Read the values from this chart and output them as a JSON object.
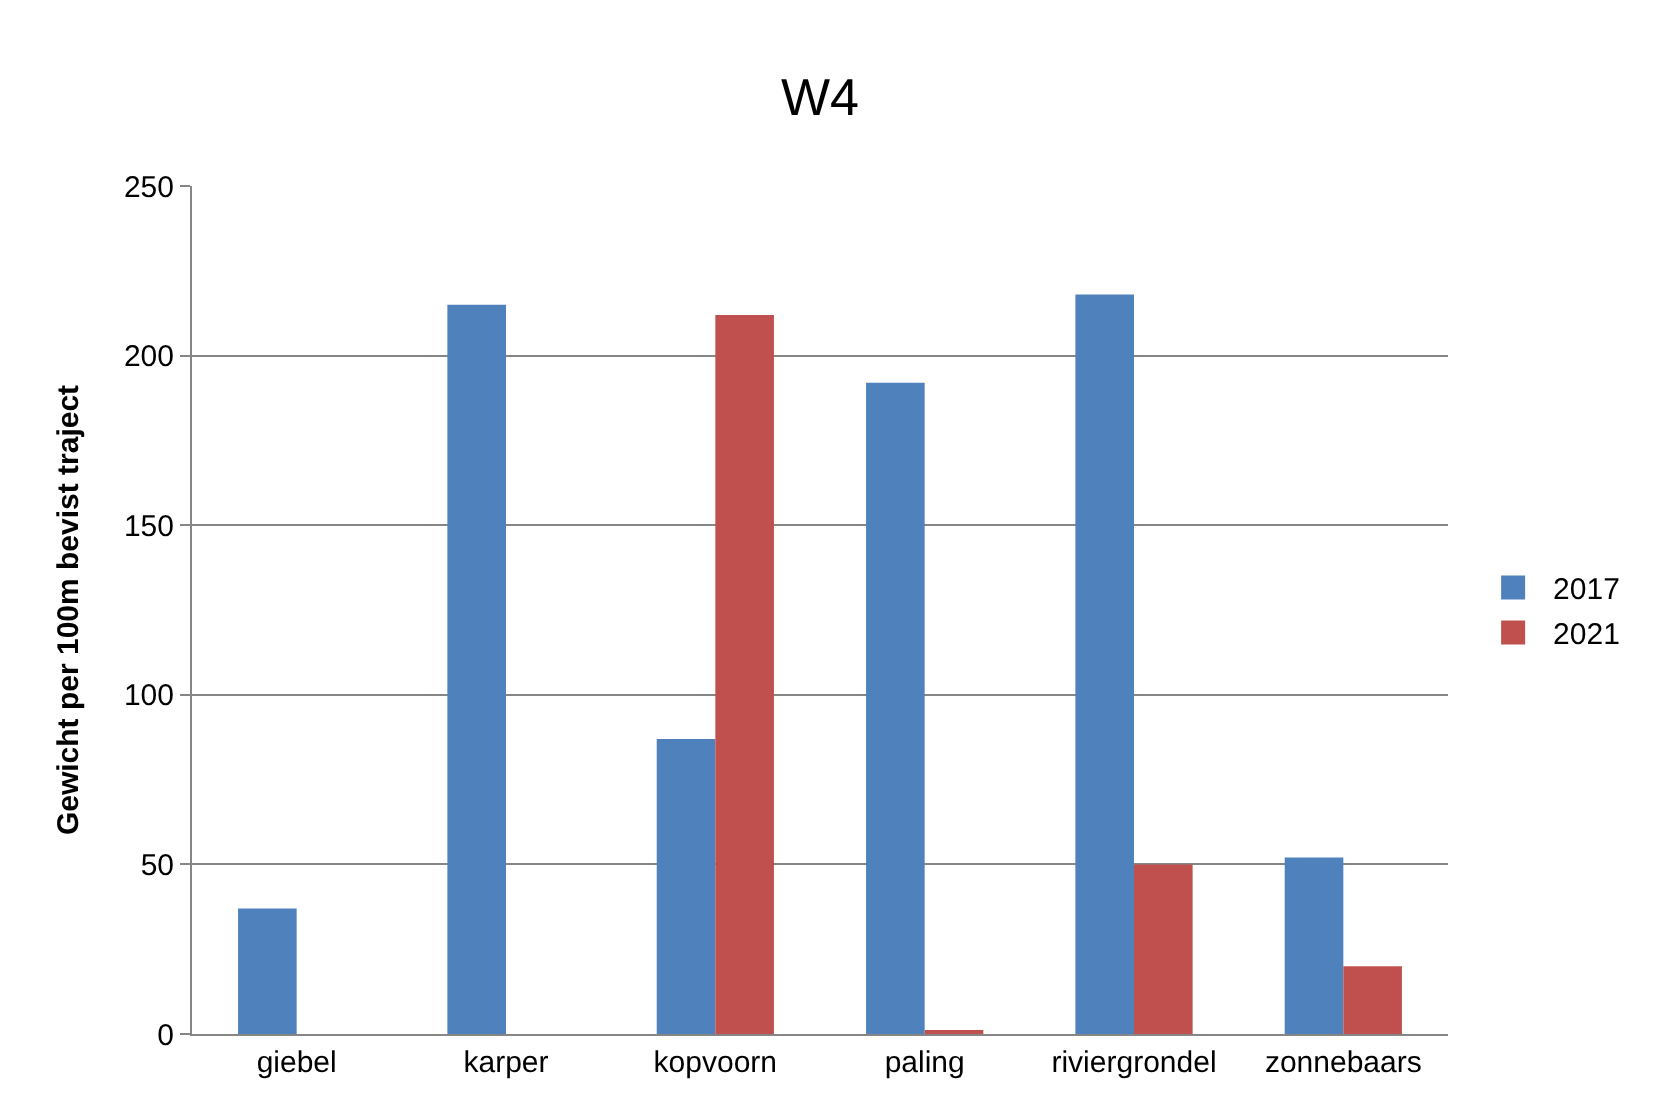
{
  "chart_data": {
    "type": "bar",
    "title": "W4",
    "ylabel": "Gewicht per 100m bevist traject",
    "categories": [
      "giebel",
      "karper",
      "kopvoorn",
      "paling",
      "riviergrondel",
      "zonnebaars"
    ],
    "series": [
      {
        "name": "2017",
        "color": "#4f81bd",
        "values": [
          37,
          215,
          87,
          192,
          218,
          52
        ]
      },
      {
        "name": "2021",
        "color": "#c0504d",
        "values": [
          0,
          0,
          212,
          1,
          50,
          20
        ]
      }
    ],
    "ylim": [
      0,
      250
    ],
    "yticks": [
      0,
      50,
      100,
      150,
      200,
      250
    ],
    "grid": "y",
    "legend": "right"
  }
}
